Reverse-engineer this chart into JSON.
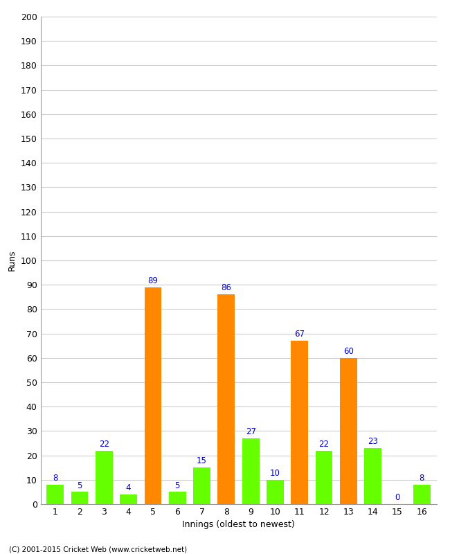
{
  "innings": [
    1,
    2,
    3,
    4,
    5,
    6,
    7,
    8,
    9,
    10,
    11,
    12,
    13,
    14,
    15,
    16
  ],
  "values": [
    8,
    5,
    22,
    4,
    89,
    5,
    15,
    86,
    27,
    10,
    67,
    22,
    60,
    23,
    0,
    8
  ],
  "colors": [
    "#66ff00",
    "#66ff00",
    "#66ff00",
    "#66ff00",
    "#ff8800",
    "#66ff00",
    "#66ff00",
    "#ff8800",
    "#66ff00",
    "#66ff00",
    "#ff8800",
    "#66ff00",
    "#ff8800",
    "#66ff00",
    "#66ff00",
    "#66ff00"
  ],
  "xlabel": "Innings (oldest to newest)",
  "ylabel": "Runs",
  "ylim": [
    0,
    200
  ],
  "yticks": [
    0,
    10,
    20,
    30,
    40,
    50,
    60,
    70,
    80,
    90,
    100,
    110,
    120,
    130,
    140,
    150,
    160,
    170,
    180,
    190,
    200
  ],
  "label_color": "#0000cc",
  "label_fontsize": 8.5,
  "axis_fontsize": 9,
  "background_color": "#ffffff",
  "grid_color": "#cccccc",
  "copyright": "(C) 2001-2015 Cricket Web (www.cricketweb.net)"
}
